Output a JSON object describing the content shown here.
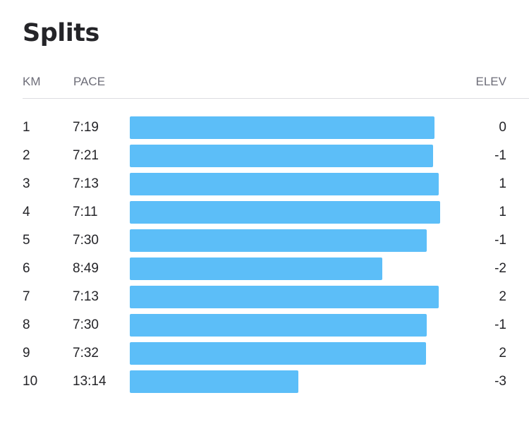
{
  "title": "Splits",
  "columns": {
    "km": "KM",
    "pace": "PACE",
    "elev": "ELEV"
  },
  "colors": {
    "bar": "#5cbef8",
    "text": "#242428",
    "header_text": "#6d6d78",
    "divider": "#dcdce0"
  },
  "splits": [
    {
      "km": "1",
      "pace": "7:19",
      "elev": "0",
      "pace_seconds": 439
    },
    {
      "km": "2",
      "pace": "7:21",
      "elev": "-1",
      "pace_seconds": 441
    },
    {
      "km": "3",
      "pace": "7:13",
      "elev": "1",
      "pace_seconds": 433
    },
    {
      "km": "4",
      "pace": "7:11",
      "elev": "1",
      "pace_seconds": 431
    },
    {
      "km": "5",
      "pace": "7:30",
      "elev": "-1",
      "pace_seconds": 450
    },
    {
      "km": "6",
      "pace": "8:49",
      "elev": "-2",
      "pace_seconds": 529
    },
    {
      "km": "7",
      "pace": "7:13",
      "elev": "2",
      "pace_seconds": 433
    },
    {
      "km": "8",
      "pace": "7:30",
      "elev": "-1",
      "pace_seconds": 450
    },
    {
      "km": "9",
      "pace": "7:32",
      "elev": "2",
      "pace_seconds": 452
    },
    {
      "km": "10",
      "pace": "13:14",
      "elev": "-3",
      "pace_seconds": 794
    }
  ]
}
